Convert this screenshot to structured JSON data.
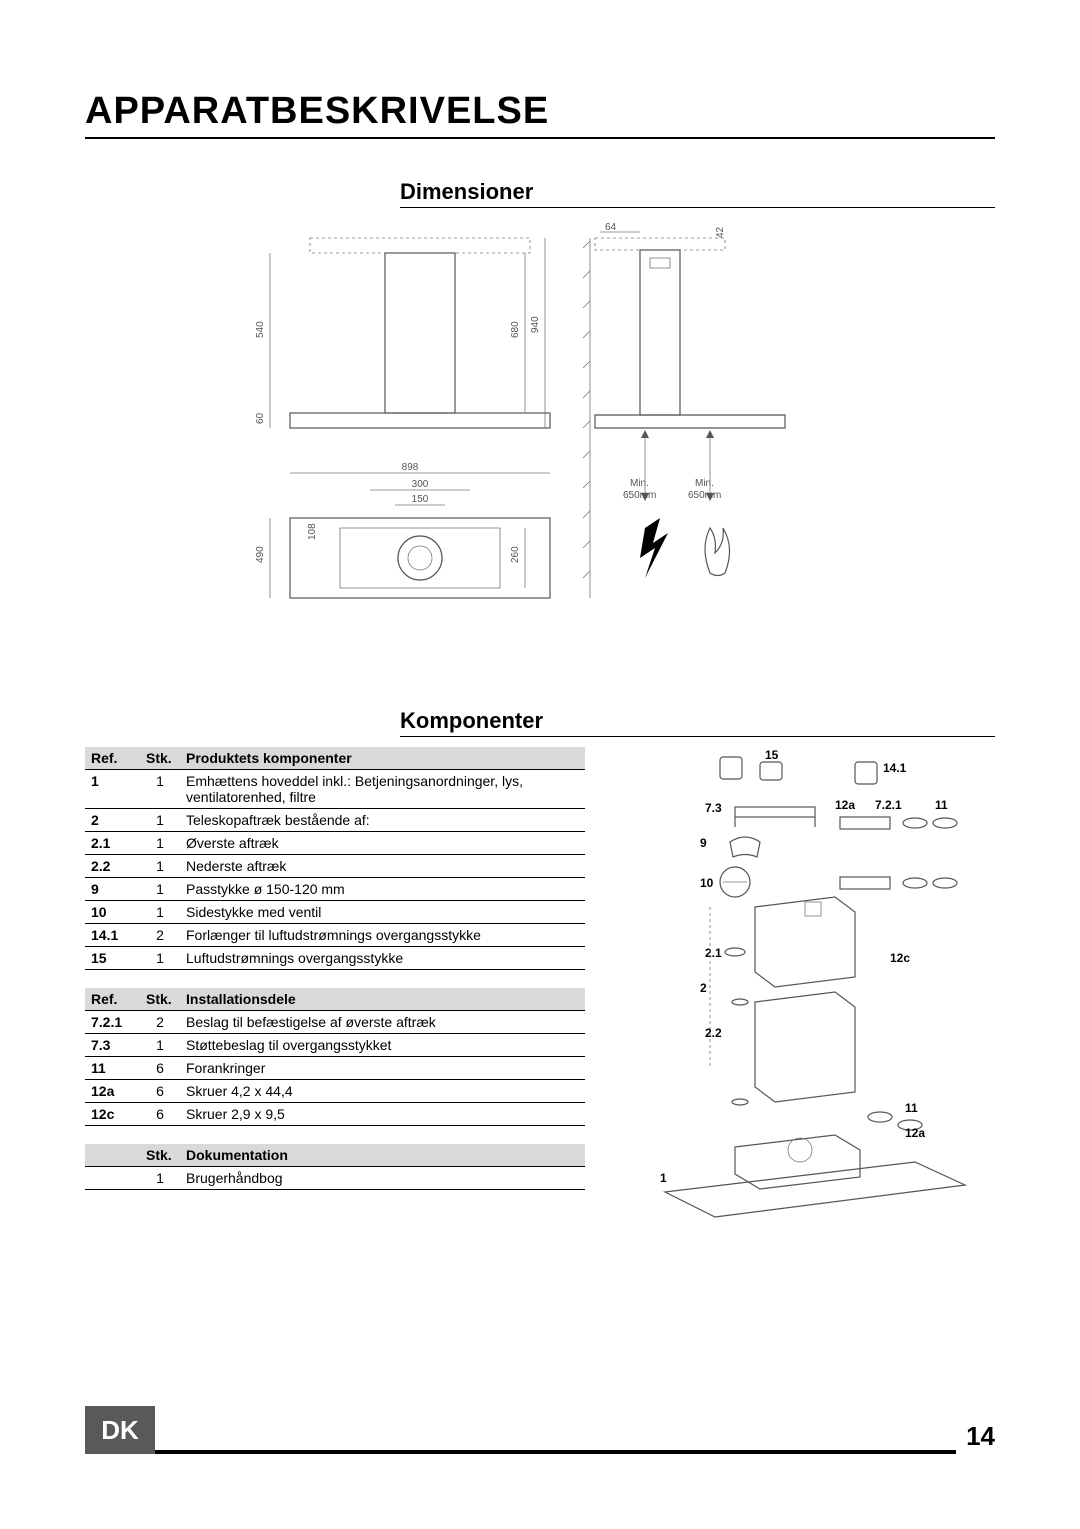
{
  "page_title": "APPARATBESKRIVELSE",
  "section_dimensions": "Dimensioner",
  "section_components": "Komponenter",
  "footer": {
    "lang": "DK",
    "page": "14"
  },
  "dimensions": {
    "labels": {
      "w898": "898",
      "w300": "300",
      "w150": "150",
      "h540": "540",
      "h60": "60",
      "h680": "680",
      "h940": "940",
      "h108": "108",
      "h490": "490",
      "h260": "260",
      "w64": "64",
      "h42": "42",
      "min1": "Min.",
      "min1v": "650mm",
      "min2": "Min.",
      "min2v": "650mm"
    },
    "colors": {
      "line": "#777777",
      "text": "#555555",
      "fill_light": "#e8e8e8"
    }
  },
  "table1": {
    "headers": [
      "Ref.",
      "Stk.",
      "Produktets komponenter"
    ],
    "rows": [
      [
        "1",
        "1",
        "Emhættens hoveddel inkl.: Betjeningsanordninger, lys, ventilatorenhed, filtre"
      ],
      [
        "2",
        "1",
        "Teleskopaftræk bestående af:"
      ],
      [
        "2.1",
        "1",
        "Øverste aftræk"
      ],
      [
        "2.2",
        "1",
        "Nederste aftræk"
      ],
      [
        "9",
        "1",
        "Passtykke ø 150-120 mm"
      ],
      [
        "10",
        "1",
        "Sidestykke med ventil"
      ],
      [
        "14.1",
        "2",
        "Forlænger til luftudstrømnings overgangsstykke"
      ],
      [
        "15",
        "1",
        "Luftudstrømnings overgangsstykke"
      ]
    ]
  },
  "table2": {
    "headers": [
      "Ref.",
      "Stk.",
      "Installationsdele"
    ],
    "rows": [
      [
        "7.2.1",
        "2",
        "Beslag til befæstigelse af øverste aftræk"
      ],
      [
        "7.3",
        "1",
        "Støttebeslag til overgangsstykket"
      ],
      [
        "11",
        "6",
        "Forankringer"
      ],
      [
        "12a",
        "6",
        "Skruer 4,2 x 44,4"
      ],
      [
        "12c",
        "6",
        "Skruer 2,9 x 9,5"
      ]
    ]
  },
  "table3": {
    "headers": [
      "",
      "Stk.",
      "Dokumentation"
    ],
    "rows": [
      [
        "",
        "1",
        "Brugerhåndbog"
      ]
    ]
  },
  "exploded_labels": [
    "15",
    "14.1",
    "7.3",
    "12a",
    "7.2.1",
    "11",
    "9",
    "10",
    "2.1",
    "12c",
    "2",
    "2.2",
    "11",
    "12a",
    "1"
  ]
}
